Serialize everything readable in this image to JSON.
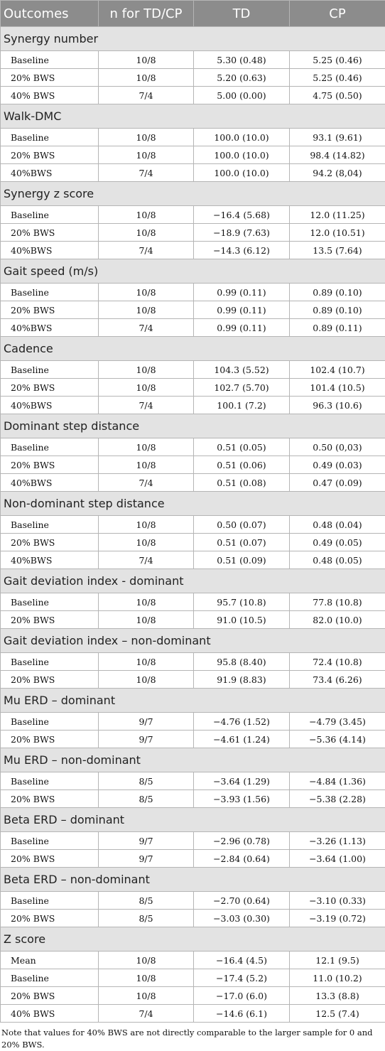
{
  "table": {
    "columns": [
      "Outcomes",
      "n for TD/CP",
      "TD",
      "CP"
    ],
    "sections": [
      {
        "title": "Synergy number",
        "rows": [
          [
            "Baseline",
            "10/8",
            "5.30 (0.48)",
            "5.25 (0.46)"
          ],
          [
            "20% BWS",
            "10/8",
            "5.20 (0.63)",
            "5.25 (0.46)"
          ],
          [
            "40% BWS",
            "7/4",
            "5.00 (0.00)",
            "4.75 (0.50)"
          ]
        ]
      },
      {
        "title": "Walk-DMC",
        "rows": [
          [
            "Baseline",
            "10/8",
            "100.0 (10.0)",
            "93.1 (9.61)"
          ],
          [
            "20% BWS",
            "10/8",
            "100.0 (10.0)",
            "98.4 (14.82)"
          ],
          [
            "40%BWS",
            "7/4",
            "100.0 (10.0)",
            "94.2 (8,04)"
          ]
        ]
      },
      {
        "title": "Synergy z score",
        "rows": [
          [
            "Baseline",
            "10/8",
            "−16.4 (5.68)",
            "12.0 (11.25)"
          ],
          [
            "20% BWS",
            "10/8",
            "−18.9 (7.63)",
            "12.0 (10.51)"
          ],
          [
            "40%BWS",
            "7/4",
            "−14.3 (6.12)",
            "13.5 (7.64)"
          ]
        ]
      },
      {
        "title": "Gait speed (m/s)",
        "rows": [
          [
            "Baseline",
            "10/8",
            "0.99 (0.11)",
            "0.89 (0.10)"
          ],
          [
            "20% BWS",
            "10/8",
            "0.99 (0.11)",
            "0.89 (0.10)"
          ],
          [
            "40%BWS",
            "7/4",
            "0.99 (0.11)",
            "0.89 (0.11)"
          ]
        ]
      },
      {
        "title": "Cadence",
        "rows": [
          [
            "Baseline",
            "10/8",
            "104.3 (5.52)",
            "102.4 (10.7)"
          ],
          [
            "20% BWS",
            "10/8",
            "102.7 (5.70)",
            "101.4 (10.5)"
          ],
          [
            "40%BWS",
            "7/4",
            "100.1 (7.2)",
            "96.3 (10.6)"
          ]
        ]
      },
      {
        "title": "Dominant step distance",
        "rows": [
          [
            "Baseline",
            "10/8",
            "0.51 (0.05)",
            "0.50 (0,03)"
          ],
          [
            "20% BWS",
            "10/8",
            "0.51 (0.06)",
            "0.49 (0.03)"
          ],
          [
            "40%BWS",
            "7/4",
            "0.51 (0.08)",
            "0.47 (0.09)"
          ]
        ]
      },
      {
        "title": "Non-dominant step distance",
        "rows": [
          [
            "Baseline",
            "10/8",
            "0.50 (0.07)",
            "0.48 (0.04)"
          ],
          [
            "20% BWS",
            "10/8",
            "0.51 (0.07)",
            "0.49 (0.05)"
          ],
          [
            "40%BWS",
            "7/4",
            "0.51 (0.09)",
            "0.48 (0.05)"
          ]
        ]
      },
      {
        "title": "Gait deviation index - dominant",
        "rows": [
          [
            "Baseline",
            "10/8",
            "95.7 (10.8)",
            "77.8 (10.8)"
          ],
          [
            "20% BWS",
            "10/8",
            "91.0 (10.5)",
            "82.0 (10.0)"
          ]
        ]
      },
      {
        "title": "Gait deviation index – non-dominant",
        "rows": [
          [
            "Baseline",
            "10/8",
            "95.8 (8.40)",
            "72.4 (10.8)"
          ],
          [
            "20% BWS",
            "10/8",
            "91.9 (8.83)",
            "73.4 (6.26)"
          ]
        ]
      },
      {
        "title": "Mu ERD – dominant",
        "rows": [
          [
            "Baseline",
            "9/7",
            "−4.76 (1.52)",
            "−4.79 (3.45)"
          ],
          [
            "20% BWS",
            "9/7",
            "−4.61 (1.24)",
            "−5.36 (4.14)"
          ]
        ]
      },
      {
        "title": "Mu ERD – non-dominant",
        "rows": [
          [
            "Baseline",
            "8/5",
            "−3.64 (1.29)",
            "−4.84 (1.36)"
          ],
          [
            "20% BWS",
            "8/5",
            "−3.93 (1.56)",
            "−5.38 (2.28)"
          ]
        ]
      },
      {
        "title": "Beta ERD – dominant",
        "rows": [
          [
            "Baseline",
            "9/7",
            "−2.96 (0.78)",
            "−3.26 (1.13)"
          ],
          [
            "20% BWS",
            "9/7",
            "−2.84 (0.64)",
            "−3.64 (1.00)"
          ]
        ]
      },
      {
        "title": "Beta ERD – non-dominant",
        "rows": [
          [
            "Baseline",
            "8/5",
            "−2.70 (0.64)",
            "−3.10 (0.33)"
          ],
          [
            "20% BWS",
            "8/5",
            "−3.03 (0.30)",
            "−3.19 (0.72)"
          ]
        ]
      },
      {
        "title": "Z score",
        "rows": [
          [
            "Mean",
            "10/8",
            "−16.4 (4.5)",
            "12.1 (9.5)"
          ],
          [
            "Baseline",
            "10/8",
            "−17.4 (5.2)",
            "11.0 (10.2)"
          ],
          [
            "20% BWS",
            "10/8",
            "−17.0 (6.0)",
            "13.3 (8.8)"
          ],
          [
            "40% BWS",
            "7/4",
            "−14.6 (6.1)",
            "12.5 (7.4)"
          ]
        ]
      }
    ],
    "note": "Note that values for 40% BWS are not directly comparable to the larger sample for 0 and 20% BWS."
  }
}
